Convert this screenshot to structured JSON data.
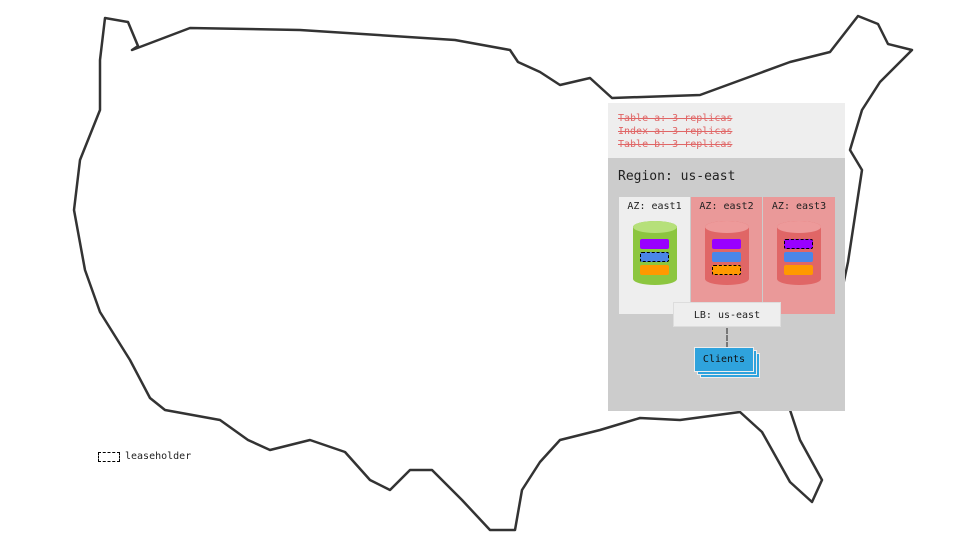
{
  "policy": {
    "lines": [
      "Table a: 3 replicas",
      "Index a: 3 replicas",
      "Table b: 3 replicas"
    ],
    "color": "#e06666",
    "struck": true
  },
  "region": {
    "title": "Region: us-east"
  },
  "azs": [
    {
      "label": "AZ: east1",
      "status": "healthy",
      "bg": "#eeeeee",
      "cylinder": "#8cc63f",
      "leaseholder": "blue"
    },
    {
      "label": "AZ: east2",
      "status": "failed",
      "bg": "#ea9999",
      "cylinder": "#e06666",
      "leaseholder": "orange"
    },
    {
      "label": "AZ: east3",
      "status": "failed",
      "bg": "#ea9999",
      "cylinder": "#e06666",
      "leaseholder": "purple"
    }
  ],
  "ranges": {
    "colors": [
      "#9900ff",
      "#4a86e8",
      "#ff9900"
    ]
  },
  "lb": {
    "label": "LB: us-east"
  },
  "clients": {
    "label": "Clients",
    "color": "#2fa3dd"
  },
  "legend": {
    "label": "leaseholder"
  }
}
